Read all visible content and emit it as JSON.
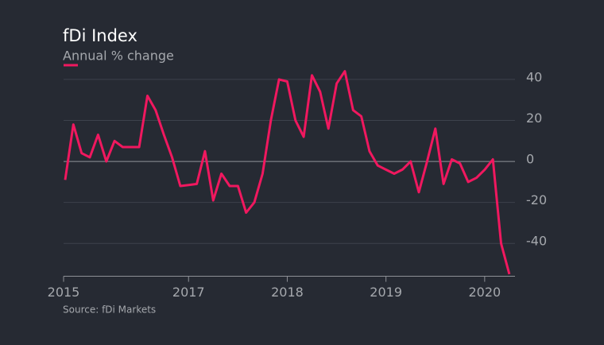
{
  "chart_data": {
    "type": "line",
    "title": "fDi Index",
    "subtitle": "Annual % change",
    "source": "Source: fDi Markets",
    "categories": [
      "2015",
      null,
      null,
      null,
      null,
      null,
      null,
      null,
      null,
      null,
      null,
      null,
      null,
      null,
      null,
      "2017",
      null,
      null,
      null,
      null,
      null,
      null,
      null,
      null,
      null,
      null,
      null,
      "2018",
      null,
      null,
      null,
      null,
      null,
      null,
      null,
      null,
      null,
      null,
      null,
      "2019",
      null,
      null,
      null,
      null,
      null,
      null,
      null,
      null,
      null,
      null,
      null,
      "2020",
      null,
      null,
      null
    ],
    "series": [
      {
        "name": "Annual % change",
        "color": "#f0185f",
        "values": [
          -9,
          18,
          4,
          2,
          13,
          0,
          10,
          7,
          7,
          7,
          32,
          25,
          13,
          2,
          -12,
          -11.5,
          -11,
          5,
          -19,
          -6,
          -12,
          -12,
          -25,
          -20,
          -6,
          20,
          40,
          39,
          20,
          12,
          42,
          34,
          16,
          38,
          44,
          25,
          22,
          5,
          -2,
          -4,
          -6,
          -4,
          0,
          -15,
          0,
          16,
          -11,
          1,
          -1,
          -10,
          -8,
          -4,
          1,
          -40,
          -55
        ]
      }
    ],
    "ylim": [
      -56,
      45
    ],
    "yticks": [
      40,
      20,
      0,
      -20,
      -40
    ],
    "grid": true
  }
}
